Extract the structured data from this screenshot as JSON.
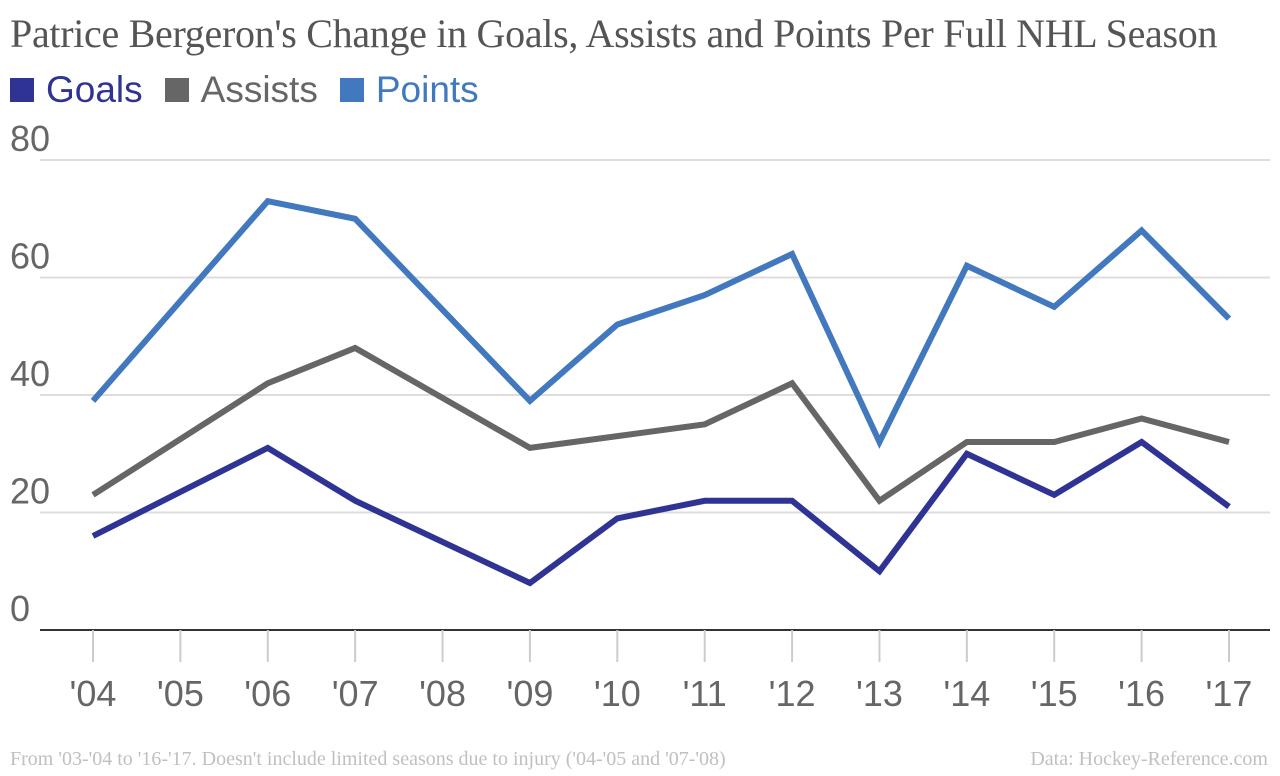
{
  "chart_data": {
    "type": "line",
    "title": "Patrice Bergeron's Change in Goals, Assists and Points Per Full NHL Season",
    "categories": [
      "'04",
      "'05",
      "'06",
      "'07",
      "'08",
      "'09",
      "'10",
      "'11",
      "'12",
      "'13",
      "'14",
      "'15",
      "'16",
      "'17"
    ],
    "series": [
      {
        "name": "Goals",
        "color": "#2f3494",
        "values": [
          16,
          null,
          31,
          22,
          null,
          8,
          19,
          22,
          22,
          10,
          30,
          23,
          32,
          21
        ]
      },
      {
        "name": "Assists",
        "color": "#666666",
        "values": [
          23,
          null,
          42,
          48,
          null,
          31,
          33,
          35,
          42,
          22,
          32,
          32,
          36,
          32
        ]
      },
      {
        "name": "Points",
        "color": "#4178be",
        "values": [
          39,
          null,
          73,
          70,
          null,
          39,
          52,
          57,
          64,
          32,
          62,
          55,
          68,
          53
        ]
      }
    ],
    "y_ticks": [
      0,
      20,
      40,
      60,
      80
    ],
    "ylim": [
      0,
      80
    ],
    "grid": true,
    "legend_position": "top-left",
    "xlabel": "",
    "ylabel": ""
  },
  "footer": {
    "note": "From '03-'04 to '16-'17. Doesn't include limited seasons due to injury ('04-'05 and '07-'08)",
    "source": "Data: Hockey-Reference.com"
  }
}
